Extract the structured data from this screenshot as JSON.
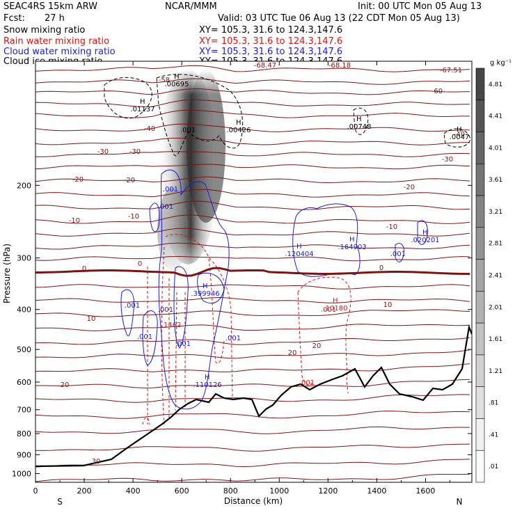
{
  "header": {
    "model": "SEAC4RS 15km ARW",
    "org": "NCAR/MMM",
    "init": "Init: 00 UTC Mon 05 Aug 13",
    "fcst_label": "Fcst:",
    "fcst_value": "27 h",
    "valid": "Valid: 03 UTC Tue 06 Aug 13 (22 CDT Mon 05 Aug 13)"
  },
  "fields": [
    {
      "name": "Snow mixing ratio",
      "xy": "XY= 105.3, 31.6 to 124.3,147.6",
      "color": "#000000"
    },
    {
      "name": "Rain water mixing ratio",
      "xy": "XY= 105.3, 31.6 to 124.3,147.6",
      "color": "#e01010"
    },
    {
      "name": "Cloud water mixing ratio",
      "xy": "XY= 105.3, 31.6 to 124.3,147.6",
      "color": "#1a1ae0"
    },
    {
      "name": "Cloud ice mixing ratio",
      "xy": "XY= 105.3, 31.6 to 124.3,147.6",
      "color": "#000000"
    }
  ],
  "chart_data": {
    "type": "heatmap",
    "xlabel": "Distance (km)",
    "ylabel": "Pressure (hPa)",
    "xlim": [
      0,
      1790
    ],
    "ylim": [
      1050,
      100
    ],
    "y_scale": "log",
    "x_ticks": [
      "0",
      "200",
      "400",
      "600",
      "800",
      "1000",
      "1200",
      "1400",
      "1600"
    ],
    "y_ticks": [
      "200",
      "300",
      "400",
      "500",
      "600",
      "700",
      "800",
      "900",
      "1000"
    ],
    "end_labels": {
      "left": "S",
      "right": "N"
    },
    "colorbar": {
      "units": "g kg⁻¹",
      "levels": [
        "4.81",
        "4.41",
        "4.01",
        "3.61",
        "3.21",
        "2.81",
        "2.41",
        "2.01",
        "1.61",
        "1.21",
        ".81",
        ".41",
        ".01"
      ]
    },
    "isotherm_labels": [
      {
        "text": "-68.18"
      },
      {
        "text": "-68.47"
      },
      {
        "text": "-67.51"
      },
      {
        "text": "-60"
      },
      {
        "text": "-40"
      },
      {
        "text": "-40"
      },
      {
        "text": "-30"
      },
      {
        "text": "-30"
      },
      {
        "text": "-30"
      },
      {
        "text": "-20"
      },
      {
        "text": "-20"
      },
      {
        "text": "-20"
      },
      {
        "text": "-10"
      },
      {
        "text": "-10"
      },
      {
        "text": "-10"
      },
      {
        "text": "0"
      },
      {
        "text": "0"
      },
      {
        "text": "0"
      },
      {
        "text": "10"
      },
      {
        "text": "10"
      },
      {
        "text": "20"
      },
      {
        "text": "20"
      },
      {
        "text": "20"
      },
      {
        "text": "30"
      },
      {
        "text": "-58"
      }
    ],
    "max_labels": [
      {
        "text": ".00695",
        "color": "#000000"
      },
      {
        "text": ".01137",
        "color": "#000000"
      },
      {
        "text": ".001",
        "color": "#000000"
      },
      {
        "text": ".00426",
        "color": "#000000"
      },
      {
        "text": ".00748",
        "color": "#000000"
      },
      {
        "text": ".0047",
        "color": "#000000"
      },
      {
        "text": ".001",
        "color": "#1a1ae0"
      },
      {
        "text": ".001",
        "color": "#1a1ae0"
      },
      {
        "text": ".001",
        "color": "#1a1ae0"
      },
      {
        "text": ".120404",
        "color": "#1a1ae0"
      },
      {
        "text": ".164903",
        "color": "#1a1ae0"
      },
      {
        "text": ".020201",
        "color": "#1a1ae0"
      },
      {
        "text": ".001",
        "color": "#1a1ae0"
      },
      {
        "text": ".001",
        "color": "#1a1ae0"
      },
      {
        "text": ".001",
        "color": "#1a1ae0"
      },
      {
        "text": ".001",
        "color": "#1a1ae0"
      },
      {
        "text": ".399946",
        "color": "#1a1ae0"
      },
      {
        "text": ".110126",
        "color": "#1a1ae0"
      },
      {
        "text": ".001",
        "color": "#1a1ae0"
      },
      {
        "text": ".001",
        "color": "#e01010"
      },
      {
        "text": ".001",
        "color": "#e01010"
      },
      {
        "text": ".10180",
        "color": "#e01010"
      },
      {
        "text": ".1462",
        "color": "#e01010"
      }
    ],
    "colors": {
      "isotherm": "#7a1515",
      "zero_isotherm": "#7a1515",
      "rain": "#e01010",
      "cloud_water": "#1a1ae0",
      "cloud_ice": "#000000",
      "terrain": "#000000"
    }
  }
}
